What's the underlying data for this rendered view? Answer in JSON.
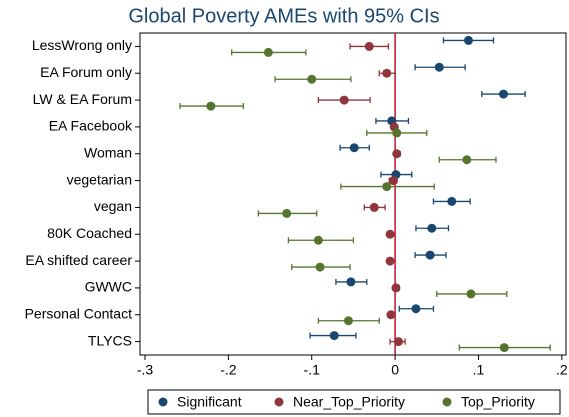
{
  "chart_data": {
    "type": "dot_errorbar",
    "title": "Global Poverty AMEs with 95% CIs",
    "categories": [
      "LessWrong only",
      "EA Forum only",
      "LW & EA Forum",
      "EA Facebook",
      "Woman",
      "vegetarian",
      "vegan",
      "80K Coached",
      "EA shifted career",
      "GWWC",
      "Personal Contact",
      "TLYCS"
    ],
    "series": [
      {
        "name": "Significant",
        "color": "#1a476f",
        "values": [
          0.088,
          0.053,
          0.13,
          -0.004,
          -0.049,
          0.001,
          0.068,
          0.044,
          0.042,
          -0.053,
          0.025,
          -0.073
        ],
        "lower": [
          0.058,
          0.024,
          0.104,
          -0.023,
          -0.066,
          -0.017,
          0.046,
          0.025,
          0.024,
          -0.071,
          0.005,
          -0.102
        ],
        "upper": [
          0.118,
          0.084,
          0.156,
          0.016,
          -0.031,
          0.02,
          0.09,
          0.064,
          0.061,
          -0.034,
          0.046,
          -0.047
        ]
      },
      {
        "name": "Near_Top_Priority",
        "color": "#90353b",
        "values": [
          -0.031,
          -0.01,
          -0.061,
          -0.001,
          0.002,
          -0.002,
          -0.025,
          -0.006,
          -0.006,
          0.001,
          -0.005,
          0.004
        ],
        "lower": [
          -0.054,
          -0.019,
          -0.092,
          -0.004,
          -0.001,
          -0.007,
          -0.037,
          -0.009,
          -0.009,
          -0.002,
          -0.008,
          -0.006
        ],
        "upper": [
          -0.008,
          0.0,
          -0.03,
          0.002,
          0.006,
          0.002,
          -0.012,
          -0.003,
          -0.003,
          0.005,
          -0.002,
          0.012
        ]
      },
      {
        "name": "Top_Priority",
        "color": "#55752f",
        "values": [
          -0.152,
          -0.1,
          -0.221,
          0.002,
          0.086,
          -0.01,
          -0.13,
          -0.092,
          -0.09,
          0.091,
          -0.056,
          0.131
        ],
        "lower": [
          -0.196,
          -0.144,
          -0.258,
          -0.034,
          0.053,
          -0.065,
          -0.164,
          -0.128,
          -0.124,
          0.05,
          -0.092,
          0.077
        ],
        "upper": [
          -0.107,
          -0.053,
          -0.182,
          0.038,
          0.121,
          0.047,
          -0.094,
          -0.05,
          -0.054,
          0.134,
          -0.019,
          0.186
        ]
      }
    ],
    "xlim": [
      -0.306,
      0.205
    ],
    "xticks": [
      {
        "value": -0.3,
        "label": "-.3"
      },
      {
        "value": -0.2,
        "label": "-.2"
      },
      {
        "value": -0.1,
        "label": "-.1"
      },
      0,
      {
        "value": 0.1,
        "label": ".1"
      },
      {
        "value": 0.2,
        "label": ".2"
      }
    ],
    "reference_line": {
      "x": 0,
      "color": "#c8102e"
    },
    "legend": "bottom"
  }
}
